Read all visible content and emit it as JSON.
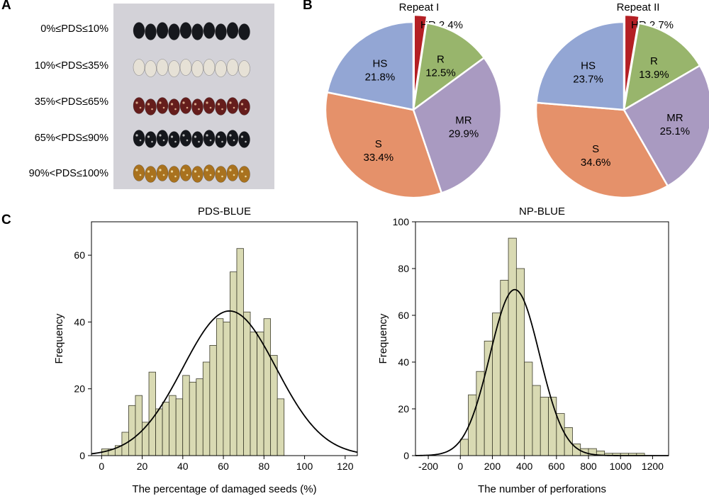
{
  "panels": {
    "a": "A",
    "b": "B",
    "c": "C"
  },
  "seed_rows": [
    {
      "label": "0%≤PDS≤10%",
      "color": "#16181d",
      "spot": null
    },
    {
      "label": "10%<PDS≤35%",
      "color": "#e6e1d6",
      "spot": null
    },
    {
      "label": "35%<PDS≤65%",
      "color": "#651d1c",
      "spot": "#d9a88a"
    },
    {
      "label": "65%<PDS≤90%",
      "color": "#15171c",
      "spot": "#b9b9b9"
    },
    {
      "label": "90%<PDS≤100%",
      "color": "#a9721e",
      "spot": "#ead7a0"
    }
  ],
  "chart_data": [
    {
      "type": "pie",
      "title": "Repeat I",
      "slices": [
        {
          "label": "HR",
          "value": 2.4,
          "text": "2.4%",
          "color": "#b41f24"
        },
        {
          "label": "R",
          "value": 12.5,
          "text": "12.5%",
          "color": "#98b56c"
        },
        {
          "label": "MR",
          "value": 29.9,
          "text": "29.9%",
          "color": "#a99ac1"
        },
        {
          "label": "S",
          "value": 33.4,
          "text": "33.4%",
          "color": "#e5916a"
        },
        {
          "label": "HS",
          "value": 21.8,
          "text": "21.8%",
          "color": "#93a6d4"
        }
      ]
    },
    {
      "type": "pie",
      "title": "Repeat II",
      "slices": [
        {
          "label": "HR",
          "value": 2.7,
          "text": "2.7%",
          "color": "#b41f24"
        },
        {
          "label": "R",
          "value": 13.9,
          "text": "13.9%",
          "color": "#98b56c"
        },
        {
          "label": "MR",
          "value": 25.1,
          "text": "25.1%",
          "color": "#a99ac1"
        },
        {
          "label": "S",
          "value": 34.6,
          "text": "34.6%",
          "color": "#e5916a"
        },
        {
          "label": "HS",
          "value": 23.7,
          "text": "23.7%",
          "color": "#93a6d4"
        }
      ]
    },
    {
      "type": "bar",
      "subtype": "histogram",
      "title": "PDS-BLUE",
      "xlabel": "The percentage of damaged seeds (%)",
      "ylabel": "Frequency",
      "xlim": [
        -5,
        126
      ],
      "ylim": [
        0,
        70
      ],
      "xticks": [
        0,
        20,
        40,
        60,
        80,
        100,
        120
      ],
      "yticks": [
        0,
        20,
        40,
        60
      ],
      "bin_start": 0,
      "bin_width": 3.33,
      "values": [
        2,
        2,
        3,
        7,
        15,
        18,
        10,
        25,
        14,
        16,
        18,
        17,
        24,
        22,
        23,
        28,
        33,
        41,
        40,
        55,
        62,
        43,
        37,
        37,
        41,
        30,
        17,
        0,
        0,
        0
      ],
      "fit": {
        "type": "normal",
        "mean": 63,
        "sd": 23,
        "peak": 43.3
      },
      "bar_color": "#d9dab3"
    },
    {
      "type": "bar",
      "subtype": "histogram",
      "title": "NP-BLUE",
      "xlabel": "The number of perforations",
      "ylabel": "Frequency",
      "xlim": [
        -280,
        1300
      ],
      "ylim": [
        0,
        100
      ],
      "xticks": [
        -200,
        0,
        200,
        400,
        600,
        800,
        1000,
        1200
      ],
      "yticks": [
        0,
        20,
        40,
        60,
        80,
        100
      ],
      "bin_start": 0,
      "bin_width": 50,
      "values": [
        7,
        26,
        36,
        49,
        61,
        75,
        93,
        80,
        40,
        30,
        25,
        25,
        18,
        12,
        5,
        3,
        3,
        2,
        1,
        1,
        1,
        1,
        1
      ],
      "fit": {
        "type": "normal",
        "mean": 340,
        "sd": 155,
        "peak": 71
      },
      "bar_color": "#d9dab3"
    }
  ]
}
